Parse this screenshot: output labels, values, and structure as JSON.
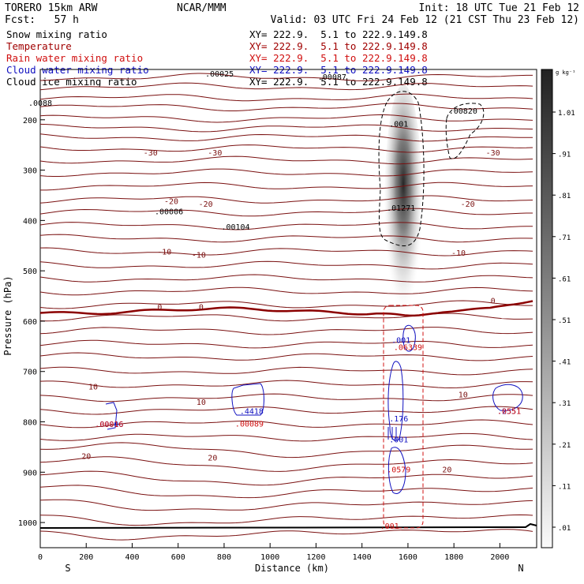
{
  "header": {
    "model_line": "TORERO  15km ARW",
    "org": "NCAR/MMM",
    "init": "Init: 18 UTC Tue 21 Feb 12",
    "fcst": "Fcst:   57 h",
    "valid": "Valid: 03 UTC Fri 24 Feb 12 (21 CST Thu 23 Feb 12)"
  },
  "legend": [
    {
      "label": "Snow mixing ratio",
      "xy": "XY= 222.9.  5.1 to 222.9.149.8",
      "color": "#000000"
    },
    {
      "label": "Temperature",
      "xy": "XY= 222.9.  5.1 to 222.9.149.8",
      "color": "#a00000"
    },
    {
      "label": "Rain water mixing ratio",
      "xy": "XY= 222.9.  5.1 to 222.9.149.8",
      "color": "#d01010"
    },
    {
      "label": "Cloud water mixing ratio",
      "xy": "XY= 222.9.  5.1 to 222.9.149.8",
      "color": "#1010c0"
    },
    {
      "label": "Cloud ice mixing ratio",
      "xy": "XY= 222.9.  5.1 to 222.9.149.8",
      "color": "#000000"
    }
  ],
  "chart_data": {
    "type": "cross-section",
    "xlabel": "Distance (km)",
    "ylabel": "Pressure (hPa)",
    "xlim": [
      0,
      2160
    ],
    "ylim": [
      1050,
      100
    ],
    "x_ticks": [
      "0",
      "200",
      "400",
      "600",
      "800",
      "1000",
      "1200",
      "1400",
      "1600",
      "1800",
      "2000"
    ],
    "y_ticks": [
      "200",
      "300",
      "400",
      "500",
      "600",
      "700",
      "800",
      "900",
      "1000"
    ],
    "left_end": "S",
    "right_end": "N",
    "colorbar": {
      "units": "g kg⁻¹",
      "labels": [
        "1.01",
        ".91",
        ".81",
        ".71",
        ".61",
        ".51",
        ".41",
        ".31",
        ".21",
        ".11",
        ".01"
      ]
    },
    "snow_core": {
      "center_km": 1580,
      "top_hPa": 130,
      "bottom_hPa": 600,
      "max": "1.01"
    },
    "temperature_labels": [
      {
        "x": 480,
        "p": 271,
        "text": "-30"
      },
      {
        "x": 760,
        "p": 271,
        "text": "-30"
      },
      {
        "x": 1970,
        "p": 271,
        "text": "-30"
      },
      {
        "x": 570,
        "p": 367,
        "text": "-20"
      },
      {
        "x": 720,
        "p": 373,
        "text": "-20"
      },
      {
        "x": 1860,
        "p": 373,
        "text": "-20"
      },
      {
        "x": 540,
        "p": 468,
        "text": "-10"
      },
      {
        "x": 690,
        "p": 474,
        "text": "-10"
      },
      {
        "x": 1820,
        "p": 470,
        "text": "-10"
      },
      {
        "x": 520,
        "p": 577,
        "text": "0"
      },
      {
        "x": 700,
        "p": 577,
        "text": "0"
      },
      {
        "x": 1970,
        "p": 565,
        "text": "0"
      },
      {
        "x": 230,
        "p": 736,
        "text": "10"
      },
      {
        "x": 700,
        "p": 766,
        "text": "10"
      },
      {
        "x": 1840,
        "p": 751,
        "text": "10"
      },
      {
        "x": 200,
        "p": 874,
        "text": "20"
      },
      {
        "x": 750,
        "p": 877,
        "text": "20"
      },
      {
        "x": 1770,
        "p": 900,
        "text": "20"
      }
    ],
    "snow_values": [
      {
        "x": 560,
        "p": 388,
        "text": ".00006"
      },
      {
        "x": 850,
        "p": 418,
        "text": ".00104"
      },
      {
        "x": 1570,
        "p": 381,
        "text": ".01271"
      },
      {
        "x": 1560,
        "p": 214,
        "text": ".001"
      },
      {
        "x": 1840,
        "p": 188,
        "text": ".00820"
      },
      {
        "x": 780,
        "p": 114,
        "text": ".00025"
      },
      {
        "x": 1270,
        "p": 120,
        "text": ".00087"
      },
      {
        "x": 0,
        "p": 172,
        "text": ".0088"
      }
    ],
    "cloud_water_values": [
      {
        "x": 300,
        "p": 810,
        "text": ".00006"
      },
      {
        "x": 920,
        "p": 784,
        "text": ".4418"
      },
      {
        "x": 1570,
        "p": 643,
        "text": ".001"
      },
      {
        "x": 1560,
        "p": 799,
        "text": ".176"
      },
      {
        "x": 1560,
        "p": 841,
        "text": ".001"
      },
      {
        "x": 2040,
        "p": 784,
        "text": ".2551"
      }
    ],
    "rain_values": [
      {
        "x": 300,
        "p": 810,
        "text": ".00016"
      },
      {
        "x": 910,
        "p": 809,
        "text": ".00089"
      },
      {
        "x": 1600,
        "p": 657,
        "text": ".06339"
      },
      {
        "x": 1560,
        "p": 900,
        "text": ".0579"
      },
      {
        "x": 2040,
        "p": 784,
        "text": ".0551"
      },
      {
        "x": 1520,
        "p": 1012,
        "text": ".001"
      }
    ]
  }
}
